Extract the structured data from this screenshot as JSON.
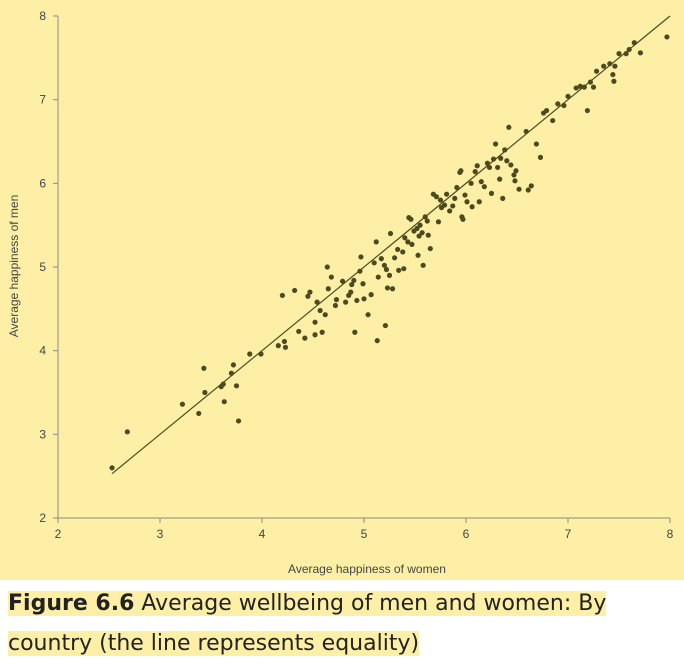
{
  "chart_data": {
    "type": "scatter",
    "title": "",
    "xlabel": "Average happiness of women",
    "ylabel": "Average happiness of men",
    "xlim": [
      2,
      8
    ],
    "ylim": [
      2,
      8
    ],
    "xticks": [
      "2",
      "3",
      "4",
      "5",
      "6",
      "7",
      "8"
    ],
    "yticks": [
      "2",
      "3",
      "4",
      "5",
      "6",
      "7",
      "8"
    ],
    "grid": false,
    "line": {
      "name": "equality",
      "x": [
        2.53,
        8.0
      ],
      "y": [
        2.53,
        8.0
      ]
    },
    "points": [
      [
        2.53,
        2.6
      ],
      [
        2.68,
        3.03
      ],
      [
        3.22,
        3.36
      ],
      [
        3.38,
        3.25
      ],
      [
        3.43,
        3.79
      ],
      [
        3.44,
        3.5
      ],
      [
        3.6,
        3.57
      ],
      [
        3.62,
        3.6
      ],
      [
        3.63,
        3.39
      ],
      [
        3.7,
        3.73
      ],
      [
        3.72,
        3.83
      ],
      [
        3.75,
        3.58
      ],
      [
        3.77,
        3.16
      ],
      [
        3.88,
        3.96
      ],
      [
        3.99,
        3.96
      ],
      [
        4.16,
        4.06
      ],
      [
        4.2,
        4.66
      ],
      [
        4.22,
        4.11
      ],
      [
        4.23,
        4.04
      ],
      [
        4.32,
        4.72
      ],
      [
        4.36,
        4.23
      ],
      [
        4.42,
        4.15
      ],
      [
        4.45,
        4.65
      ],
      [
        4.47,
        4.7
      ],
      [
        4.52,
        4.19
      ],
      [
        4.52,
        4.34
      ],
      [
        4.54,
        4.58
      ],
      [
        4.57,
        4.48
      ],
      [
        4.59,
        4.22
      ],
      [
        4.62,
        4.43
      ],
      [
        4.64,
        5.0
      ],
      [
        4.65,
        4.74
      ],
      [
        4.68,
        4.88
      ],
      [
        4.72,
        4.54
      ],
      [
        4.73,
        4.61
      ],
      [
        4.79,
        4.83
      ],
      [
        4.82,
        4.58
      ],
      [
        4.85,
        4.66
      ],
      [
        4.87,
        4.7
      ],
      [
        4.88,
        4.79
      ],
      [
        4.9,
        4.84
      ],
      [
        4.91,
        4.22
      ],
      [
        4.93,
        4.6
      ],
      [
        4.96,
        4.95
      ],
      [
        4.97,
        5.12
      ],
      [
        4.99,
        4.8
      ],
      [
        5.0,
        4.62
      ],
      [
        5.04,
        4.43
      ],
      [
        5.07,
        4.67
      ],
      [
        5.1,
        5.05
      ],
      [
        5.12,
        5.3
      ],
      [
        5.13,
        4.12
      ],
      [
        5.14,
        4.88
      ],
      [
        5.17,
        5.1
      ],
      [
        5.2,
        5.02
      ],
      [
        5.21,
        4.3
      ],
      [
        5.22,
        4.97
      ],
      [
        5.23,
        4.75
      ],
      [
        5.25,
        4.9
      ],
      [
        5.26,
        5.4
      ],
      [
        5.28,
        4.74
      ],
      [
        5.3,
        5.11
      ],
      [
        5.33,
        5.21
      ],
      [
        5.34,
        4.96
      ],
      [
        5.38,
        5.18
      ],
      [
        5.39,
        4.98
      ],
      [
        5.4,
        5.35
      ],
      [
        5.43,
        5.3
      ],
      [
        5.44,
        5.59
      ],
      [
        5.46,
        5.57
      ],
      [
        5.47,
        5.27
      ],
      [
        5.49,
        5.43
      ],
      [
        5.52,
        5.46
      ],
      [
        5.53,
        5.14
      ],
      [
        5.54,
        5.37
      ],
      [
        5.55,
        5.5
      ],
      [
        5.57,
        5.41
      ],
      [
        5.58,
        5.02
      ],
      [
        5.6,
        5.6
      ],
      [
        5.62,
        5.55
      ],
      [
        5.63,
        5.38
      ],
      [
        5.65,
        5.22
      ],
      [
        5.68,
        5.87
      ],
      [
        5.71,
        5.84
      ],
      [
        5.73,
        5.54
      ],
      [
        5.75,
        5.8
      ],
      [
        5.76,
        5.71
      ],
      [
        5.79,
        5.74
      ],
      [
        5.81,
        5.87
      ],
      [
        5.84,
        5.67
      ],
      [
        5.87,
        5.73
      ],
      [
        5.89,
        5.82
      ],
      [
        5.91,
        5.95
      ],
      [
        5.94,
        6.13
      ],
      [
        5.95,
        6.15
      ],
      [
        5.96,
        5.6
      ],
      [
        5.97,
        5.57
      ],
      [
        5.99,
        5.86
      ],
      [
        6.01,
        5.78
      ],
      [
        6.05,
        6.0
      ],
      [
        6.06,
        5.72
      ],
      [
        6.09,
        6.14
      ],
      [
        6.11,
        6.21
      ],
      [
        6.13,
        5.78
      ],
      [
        6.15,
        6.02
      ],
      [
        6.18,
        5.96
      ],
      [
        6.21,
        6.24
      ],
      [
        6.23,
        6.19
      ],
      [
        6.25,
        5.88
      ],
      [
        6.27,
        6.29
      ],
      [
        6.29,
        6.47
      ],
      [
        6.31,
        6.19
      ],
      [
        6.33,
        6.05
      ],
      [
        6.34,
        6.3
      ],
      [
        6.36,
        5.82
      ],
      [
        6.38,
        6.4
      ],
      [
        6.4,
        6.27
      ],
      [
        6.42,
        6.67
      ],
      [
        6.44,
        6.22
      ],
      [
        6.47,
        6.1
      ],
      [
        6.48,
        6.03
      ],
      [
        6.49,
        6.15
      ],
      [
        6.52,
        5.93
      ],
      [
        6.59,
        6.62
      ],
      [
        6.61,
        5.92
      ],
      [
        6.64,
        5.97
      ],
      [
        6.69,
        6.47
      ],
      [
        6.73,
        6.31
      ],
      [
        6.76,
        6.84
      ],
      [
        6.79,
        6.87
      ],
      [
        6.85,
        6.75
      ],
      [
        6.9,
        6.95
      ],
      [
        6.96,
        6.93
      ],
      [
        7.0,
        7.04
      ],
      [
        7.08,
        7.14
      ],
      [
        7.12,
        7.16
      ],
      [
        7.16,
        7.15
      ],
      [
        7.19,
        6.87
      ],
      [
        7.22,
        7.21
      ],
      [
        7.25,
        7.15
      ],
      [
        7.28,
        7.34
      ],
      [
        7.35,
        7.4
      ],
      [
        7.41,
        7.43
      ],
      [
        7.44,
        7.3
      ],
      [
        7.45,
        7.22
      ],
      [
        7.46,
        7.4
      ],
      [
        7.5,
        7.55
      ],
      [
        7.57,
        7.55
      ],
      [
        7.6,
        7.6
      ],
      [
        7.65,
        7.68
      ],
      [
        7.71,
        7.56
      ],
      [
        7.97,
        7.75
      ]
    ]
  },
  "caption": {
    "label": "Figure 6.6",
    "text": " Average wellbeing of men and women: By country (the line represents equality)"
  },
  "colors": {
    "background": "#fdf0a6",
    "points": "#4d4a1f",
    "line": "#4d4a1f",
    "axis": "#8a8a8a"
  }
}
